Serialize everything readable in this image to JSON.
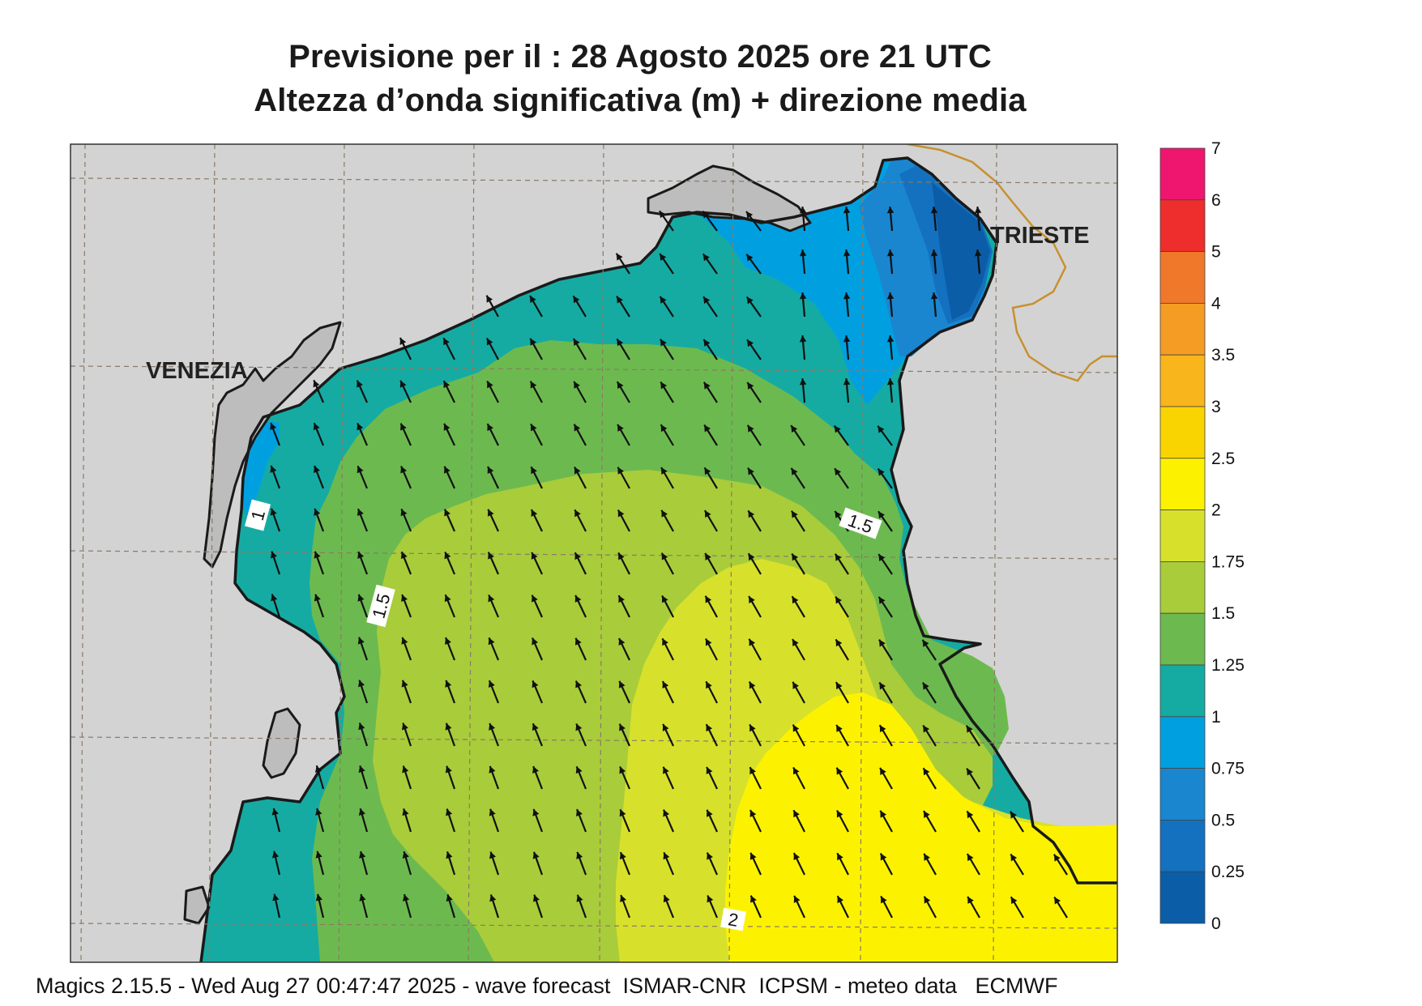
{
  "title": {
    "line1": "Previsione per il  :  28   Agosto  2025   ore 21 UTC",
    "line2": "Altezza d’onda significativa (m) + direzione media"
  },
  "map": {
    "cities": [
      "VENEZIA",
      "TRIESTE"
    ],
    "contour_labels": [
      "1",
      "1.5",
      "1.5",
      "2"
    ]
  },
  "colorbar": {
    "levels": [
      "7",
      "6",
      "5",
      "4",
      "3.5",
      "3",
      "2.5",
      "2",
      "1.75",
      "1.5",
      "1.25",
      "1",
      "0.75",
      "0.5",
      "0.25",
      "0"
    ],
    "colors": [
      "#ef1670",
      "#ee2d2d",
      "#f0782a",
      "#f59c24",
      "#f8b51c",
      "#fad400",
      "#fcf200",
      "#d7e12b",
      "#a9cc3a",
      "#6cba4f",
      "#15aba3",
      "#00a0e0",
      "#1a86cf",
      "#1471bf",
      "#0b5da8"
    ]
  },
  "footer": "Magics 2.15.5 - Wed Aug 27 00:47:47 2025 - wave forecast  ISMAR-CNR  ICPSM - meteo data   ECMWF",
  "wave_direction": "NNW"
}
